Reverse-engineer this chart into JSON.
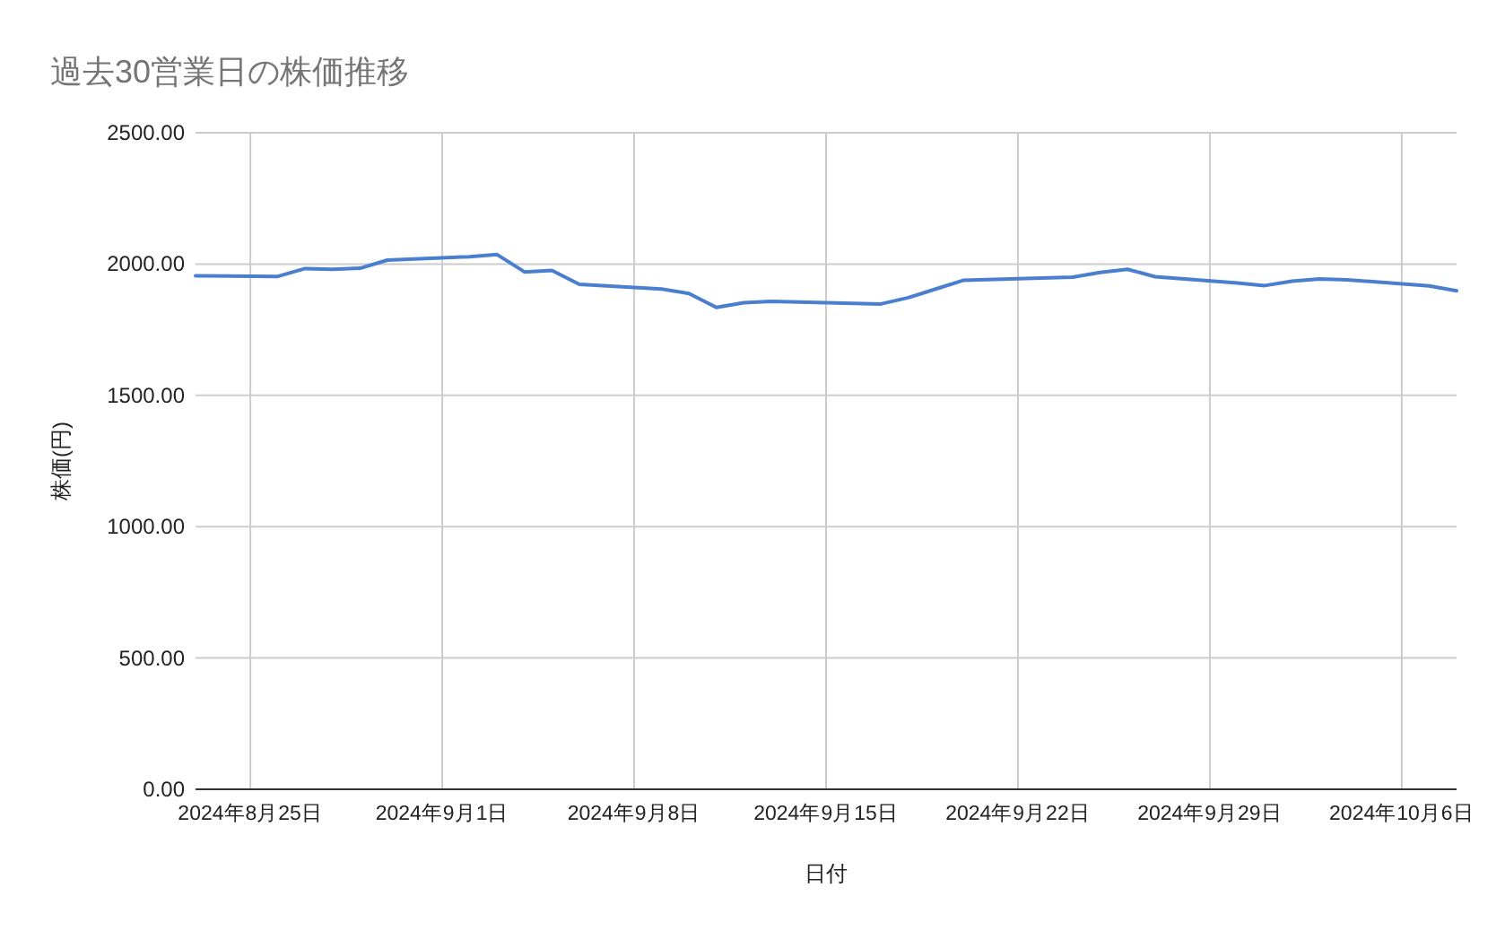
{
  "chart_data": {
    "type": "line",
    "title": "過去30営業日の株価推移",
    "xlabel": "日付",
    "ylabel": "株価(円)",
    "x": [
      "2024-08-23",
      "2024-08-26",
      "2024-08-27",
      "2024-08-28",
      "2024-08-29",
      "2024-08-30",
      "2024-09-02",
      "2024-09-03",
      "2024-09-04",
      "2024-09-05",
      "2024-09-06",
      "2024-09-09",
      "2024-09-10",
      "2024-09-11",
      "2024-09-12",
      "2024-09-13",
      "2024-09-17",
      "2024-09-18",
      "2024-09-19",
      "2024-09-20",
      "2024-09-24",
      "2024-09-25",
      "2024-09-26",
      "2024-09-27",
      "2024-09-30",
      "2024-10-01",
      "2024-10-02",
      "2024-10-03",
      "2024-10-04",
      "2024-10-07",
      "2024-10-08"
    ],
    "series": [
      {
        "color": "#4a7fcf",
        "values": [
          1955,
          1953,
          1983,
          1980,
          1984,
          2015,
          2028,
          2036,
          1970,
          1976,
          1923,
          1905,
          1888,
          1835,
          1853,
          1858,
          1848,
          1872,
          1905,
          1938,
          1950,
          1968,
          1980,
          1952,
          1928,
          1918,
          1935,
          1943,
          1940,
          1917,
          1898
        ]
      }
    ],
    "xlim": [
      "2024-08-23",
      "2024-10-08"
    ],
    "xticks": [
      {
        "value": "2024-08-25",
        "label": "2024年8月25日"
      },
      {
        "value": "2024-09-01",
        "label": "2024年9月1日"
      },
      {
        "value": "2024-09-08",
        "label": "2024年9月8日"
      },
      {
        "value": "2024-09-15",
        "label": "2024年9月15日"
      },
      {
        "value": "2024-09-22",
        "label": "2024年9月22日"
      },
      {
        "value": "2024-09-29",
        "label": "2024年9月29日"
      },
      {
        "value": "2024-10-06",
        "label": "2024年10月6日"
      }
    ],
    "ylim": [
      0,
      2500
    ],
    "yticks": [
      {
        "value": 0,
        "label": "0.00"
      },
      {
        "value": 500,
        "label": "500.00"
      },
      {
        "value": 1000,
        "label": "1000.00"
      },
      {
        "value": 1500,
        "label": "1500.00"
      },
      {
        "value": 2000,
        "label": "2000.00"
      },
      {
        "value": 2500,
        "label": "2500.00"
      }
    ],
    "grid": true,
    "marker": "none",
    "line_style": "solid"
  }
}
